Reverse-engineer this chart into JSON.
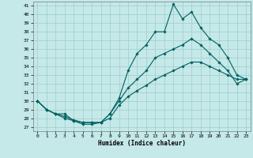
{
  "xlabel": "Humidex (Indice chaleur)",
  "xlim": [
    -0.5,
    23.5
  ],
  "ylim": [
    26.5,
    41.5
  ],
  "yticks": [
    27,
    28,
    29,
    30,
    31,
    32,
    33,
    34,
    35,
    36,
    37,
    38,
    39,
    40,
    41
  ],
  "xticks": [
    0,
    1,
    2,
    3,
    4,
    5,
    6,
    7,
    8,
    9,
    10,
    11,
    12,
    13,
    14,
    15,
    16,
    17,
    18,
    19,
    20,
    21,
    22,
    23
  ],
  "bg_color": "#c5e8e8",
  "grid_color": "#9ecece",
  "line_color": "#006060",
  "line1_x": [
    0,
    1,
    2,
    3,
    4,
    5,
    6,
    7,
    8,
    9,
    10,
    11,
    12,
    13,
    14,
    15,
    16,
    17,
    18,
    19,
    20,
    21,
    22,
    23
  ],
  "line1_y": [
    30.0,
    29.0,
    28.5,
    28.5,
    27.7,
    27.3,
    27.3,
    27.5,
    28.5,
    30.3,
    33.5,
    35.5,
    36.5,
    38.0,
    38.0,
    41.2,
    39.5,
    40.3,
    38.5,
    37.2,
    36.5,
    35.0,
    33.0,
    32.5
  ],
  "line2_x": [
    0,
    1,
    2,
    3,
    4,
    5,
    6,
    7,
    8,
    9,
    10,
    11,
    12,
    13,
    14,
    15,
    16,
    17,
    18,
    19,
    20,
    21,
    22,
    23
  ],
  "line2_y": [
    30.0,
    29.0,
    28.5,
    28.0,
    27.7,
    27.5,
    27.5,
    27.5,
    28.5,
    30.0,
    31.5,
    32.5,
    33.5,
    35.0,
    35.5,
    36.0,
    36.5,
    37.2,
    36.5,
    35.5,
    34.5,
    33.5,
    32.0,
    32.5
  ],
  "line3_x": [
    0,
    1,
    2,
    3,
    4,
    5,
    6,
    7,
    8,
    9,
    10,
    11,
    12,
    13,
    14,
    15,
    16,
    17,
    18,
    19,
    20,
    21,
    22,
    23
  ],
  "line3_y": [
    30.0,
    29.0,
    28.5,
    28.2,
    27.8,
    27.5,
    27.5,
    27.5,
    28.0,
    29.5,
    30.5,
    31.2,
    31.8,
    32.5,
    33.0,
    33.5,
    34.0,
    34.5,
    34.5,
    34.0,
    33.5,
    33.0,
    32.5,
    32.5
  ]
}
